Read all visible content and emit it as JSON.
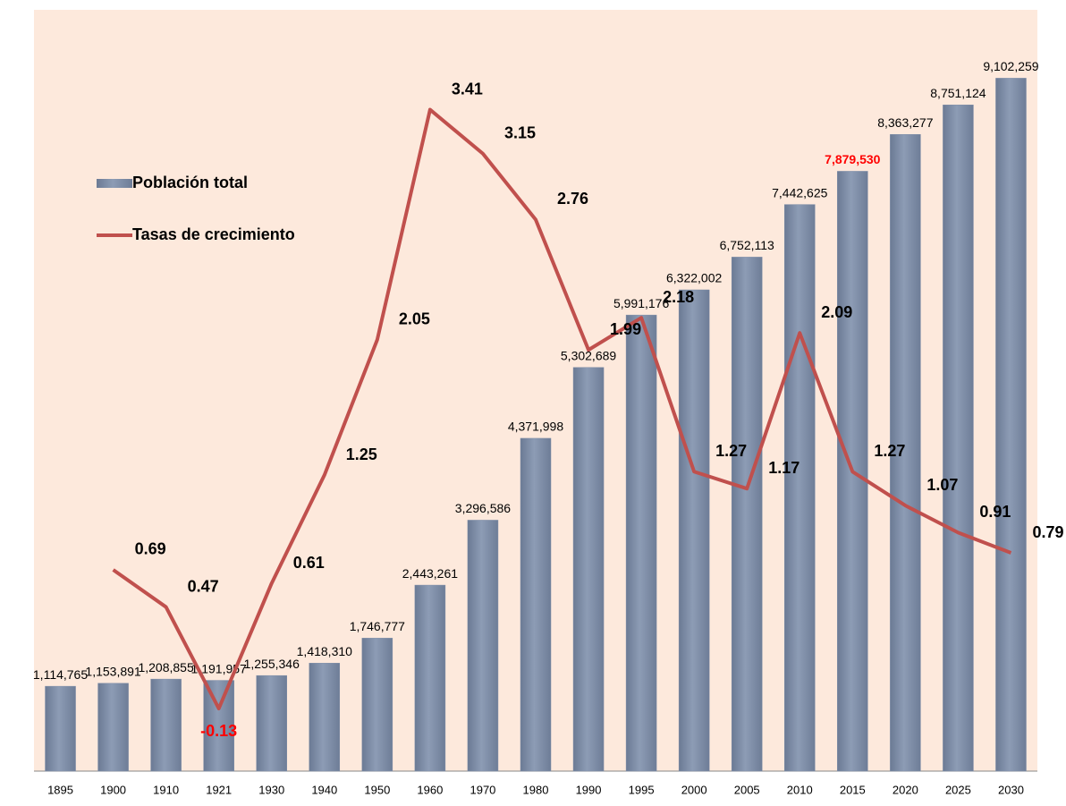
{
  "chart_data": {
    "type": "bar_line",
    "categories": [
      "1895",
      "1900",
      "1910",
      "1921",
      "1930",
      "1940",
      "1950",
      "1960",
      "1970",
      "1980",
      "1990",
      "1995",
      "2000",
      "2005",
      "2010",
      "2015",
      "2020",
      "2025",
      "2030"
    ],
    "series": [
      {
        "name": "Población total",
        "type": "bar",
        "color": "#7e8ea8",
        "values": [
          1114765,
          1153891,
          1208855,
          1191957,
          1255346,
          1418310,
          1746777,
          2443261,
          3296586,
          4371998,
          5302689,
          5991176,
          6322002,
          6752113,
          7442625,
          7879530,
          8363277,
          8751124,
          9102259
        ],
        "value_labels": [
          "1,114,765",
          "1,153,891",
          "1,208,855",
          "1,191,957",
          "1,255,346",
          "1,418,310",
          "1,746,777",
          "2,443,261",
          "3,296,586",
          "4,371,998",
          "5,302,689",
          "5,991,176",
          "6,322,002",
          "6,752,113",
          "7,442,625",
          "7,879,530",
          "8,363,277",
          "8,751,124",
          "9,102,259"
        ],
        "label_colors": [
          "#000000",
          "#000000",
          "#000000",
          "#000000",
          "#000000",
          "#000000",
          "#000000",
          "#000000",
          "#000000",
          "#000000",
          "#000000",
          "#000000",
          "#000000",
          "#000000",
          "#000000",
          "#ff0000",
          "#000000",
          "#000000",
          "#000000"
        ]
      },
      {
        "name": "Tasas de crecimiento",
        "type": "line",
        "axis": "y2",
        "color": "#c0504d",
        "values": [
          null,
          0.69,
          0.47,
          -0.13,
          0.61,
          1.25,
          2.05,
          3.41,
          3.15,
          2.76,
          1.99,
          2.18,
          1.27,
          1.17,
          2.09,
          1.27,
          1.07,
          0.91,
          0.79
        ],
        "label_colors": [
          "#000000",
          "#000000",
          "#000000",
          "#ff0000",
          "#000000",
          "#000000",
          "#000000",
          "#000000",
          "#000000",
          "#000000",
          "#000000",
          "#000000",
          "#000000",
          "#000000",
          "#000000",
          "#000000",
          "#000000",
          "#000000",
          "#000000"
        ]
      }
    ],
    "ylim": [
      0,
      10000000
    ],
    "y2lim": [
      -0.5,
      4
    ],
    "legend": "upper left",
    "background": "#fde9dc"
  }
}
